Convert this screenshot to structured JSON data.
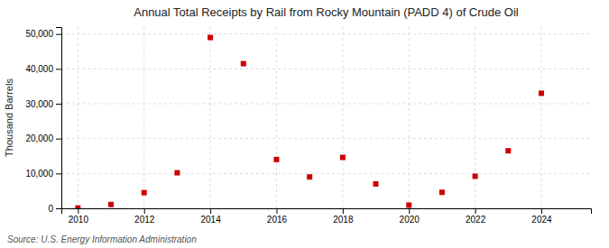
{
  "chart_data": {
    "type": "scatter",
    "title": "Annual Total Receipts by Rail from Rocky Mountain (PADD 4) of Crude Oil",
    "ylabel": "Thousand Barrels",
    "source": "Source: U.S. Energy Information Administration",
    "x": [
      2010,
      2011,
      2012,
      2013,
      2014,
      2015,
      2016,
      2017,
      2018,
      2019,
      2020,
      2021,
      2022,
      2023,
      2024
    ],
    "values": [
      100,
      1100,
      4500,
      10200,
      49000,
      41500,
      14000,
      9000,
      14600,
      7000,
      900,
      4600,
      9200,
      16500,
      33000
    ],
    "color": "#cc0000",
    "marker": "square",
    "xlim": [
      2009.5,
      2025.5
    ],
    "ylim": [
      0,
      52000
    ],
    "xticks": [
      2010,
      2012,
      2014,
      2016,
      2018,
      2020,
      2022,
      2024
    ],
    "yticks": [
      0,
      {
        "value": 10000,
        "label": "10,000"
      },
      {
        "value": 20000,
        "label": "20,000"
      },
      {
        "value": 30000,
        "label": "30,000"
      },
      {
        "value": 40000,
        "label": "40,000"
      },
      {
        "value": 50000,
        "label": "50,000"
      }
    ],
    "grid": true
  }
}
